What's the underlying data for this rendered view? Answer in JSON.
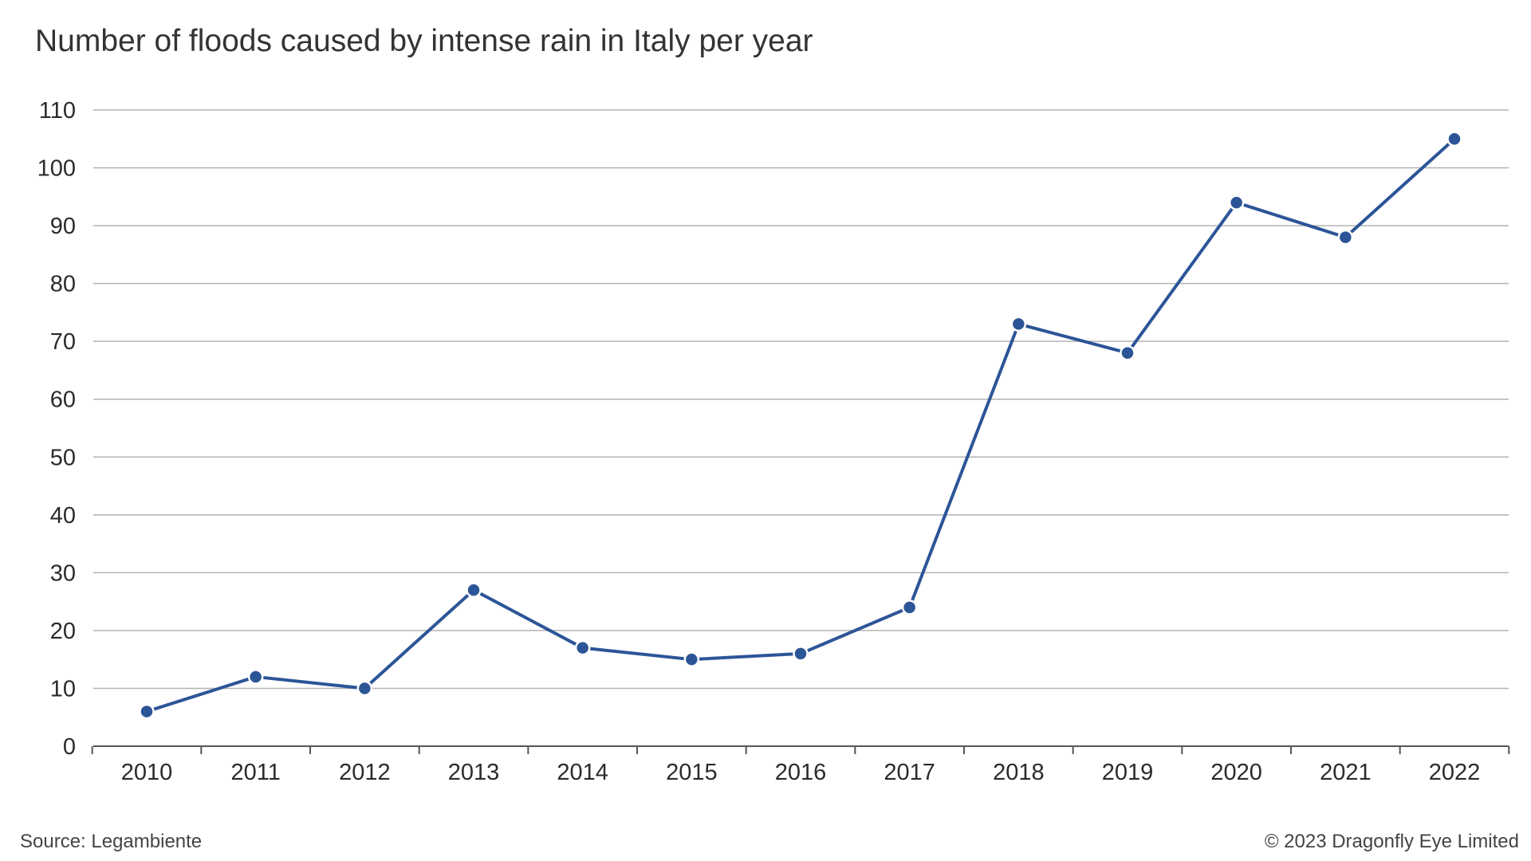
{
  "chart_data": {
    "type": "line",
    "title": "Number of floods caused by intense rain in Italy per year",
    "xlabel": "",
    "ylabel": "",
    "categories": [
      "2010",
      "2011",
      "2012",
      "2013",
      "2014",
      "2015",
      "2016",
      "2017",
      "2018",
      "2019",
      "2020",
      "2021",
      "2022"
    ],
    "series": [
      {
        "values": [
          6,
          12,
          10,
          27,
          17,
          15,
          16,
          24,
          73,
          68,
          94,
          88,
          105
        ]
      }
    ],
    "yticks": [
      "0",
      "10",
      "20",
      "30",
      "40",
      "50",
      "60",
      "70",
      "80",
      "90",
      "100",
      "110"
    ],
    "ylim": [
      0,
      110
    ],
    "grid": true,
    "legend": "none",
    "colors": {
      "line": "#2c5597",
      "marker": "#2c5597",
      "marker_outline": "#ffffff",
      "grid": "#b3b3b3",
      "axis": "#555555"
    }
  },
  "footer": {
    "source": "Source: Legambiente",
    "copyright": "© 2023 Dragonfly Eye Limited"
  }
}
